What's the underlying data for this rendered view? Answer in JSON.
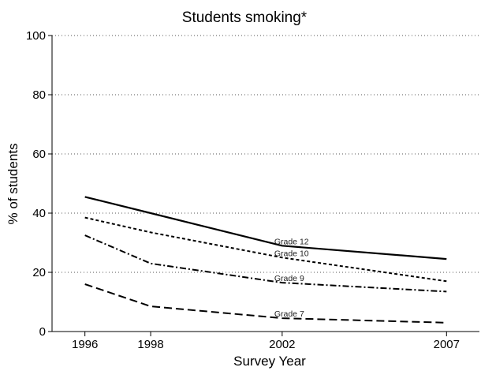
{
  "chart_data": {
    "type": "line",
    "title": "Students smoking*",
    "xlabel": "Survey Year",
    "ylabel": "% of students",
    "x": [
      1996,
      1998,
      2002,
      2007
    ],
    "xlim": [
      1995,
      2008
    ],
    "ylim": [
      0,
      100
    ],
    "yticks": [
      0,
      20,
      40,
      60,
      80,
      100
    ],
    "grid": "horizontal dotted",
    "series": [
      {
        "name": "Grade 12",
        "values": [
          45.5,
          40,
          29,
          24.5
        ],
        "dash": "solid"
      },
      {
        "name": "Grade 10",
        "values": [
          38.5,
          33.5,
          25,
          17
        ],
        "dash": "short-dash"
      },
      {
        "name": "Grade 9",
        "values": [
          32.5,
          23,
          16.5,
          13.5
        ],
        "dash": "dash-dot"
      },
      {
        "name": "Grade 7",
        "values": [
          16,
          8.5,
          4.5,
          3
        ],
        "dash": "long-dash"
      }
    ]
  }
}
